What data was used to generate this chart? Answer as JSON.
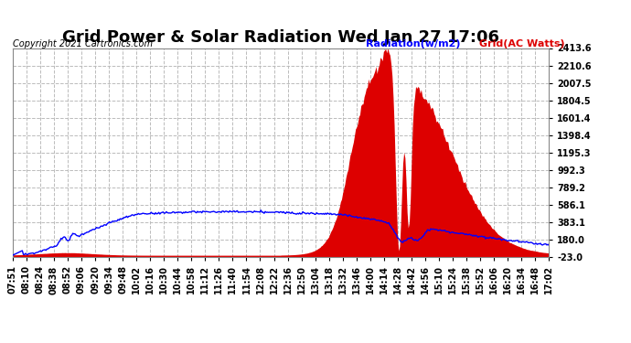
{
  "title": "Grid Power & Solar Radiation Wed Jan 27 17:06",
  "copyright": "Copyright 2021 Cartronics.com",
  "legend_radiation": "Radiation(w/m2)",
  "legend_grid": "Grid(AC Watts)",
  "bg_color": "#ffffff",
  "plot_bg_color": "#ffffff",
  "grid_color": "#bbbbbb",
  "radiation_color": "#0000ff",
  "grid_bar_color": "#dd0000",
  "ymin": -23.0,
  "ymax": 2413.6,
  "yticks": [
    -23.0,
    180.0,
    383.1,
    586.1,
    789.2,
    992.3,
    1195.3,
    1398.4,
    1601.4,
    1804.5,
    2007.5,
    2210.6,
    2413.6
  ],
  "xtick_labels": [
    "07:51",
    "08:10",
    "08:24",
    "08:38",
    "08:52",
    "09:06",
    "09:20",
    "09:34",
    "09:48",
    "10:02",
    "10:16",
    "10:30",
    "10:44",
    "10:58",
    "11:12",
    "11:26",
    "11:40",
    "11:54",
    "12:08",
    "12:22",
    "12:36",
    "12:50",
    "13:04",
    "13:18",
    "13:32",
    "13:46",
    "14:00",
    "14:14",
    "14:28",
    "14:42",
    "14:56",
    "15:10",
    "15:24",
    "15:38",
    "15:52",
    "16:06",
    "16:20",
    "16:34",
    "16:48",
    "17:02"
  ],
  "title_fontsize": 13,
  "label_fontsize": 8,
  "tick_fontsize": 7,
  "copyright_fontsize": 7,
  "right_yaxis": true
}
